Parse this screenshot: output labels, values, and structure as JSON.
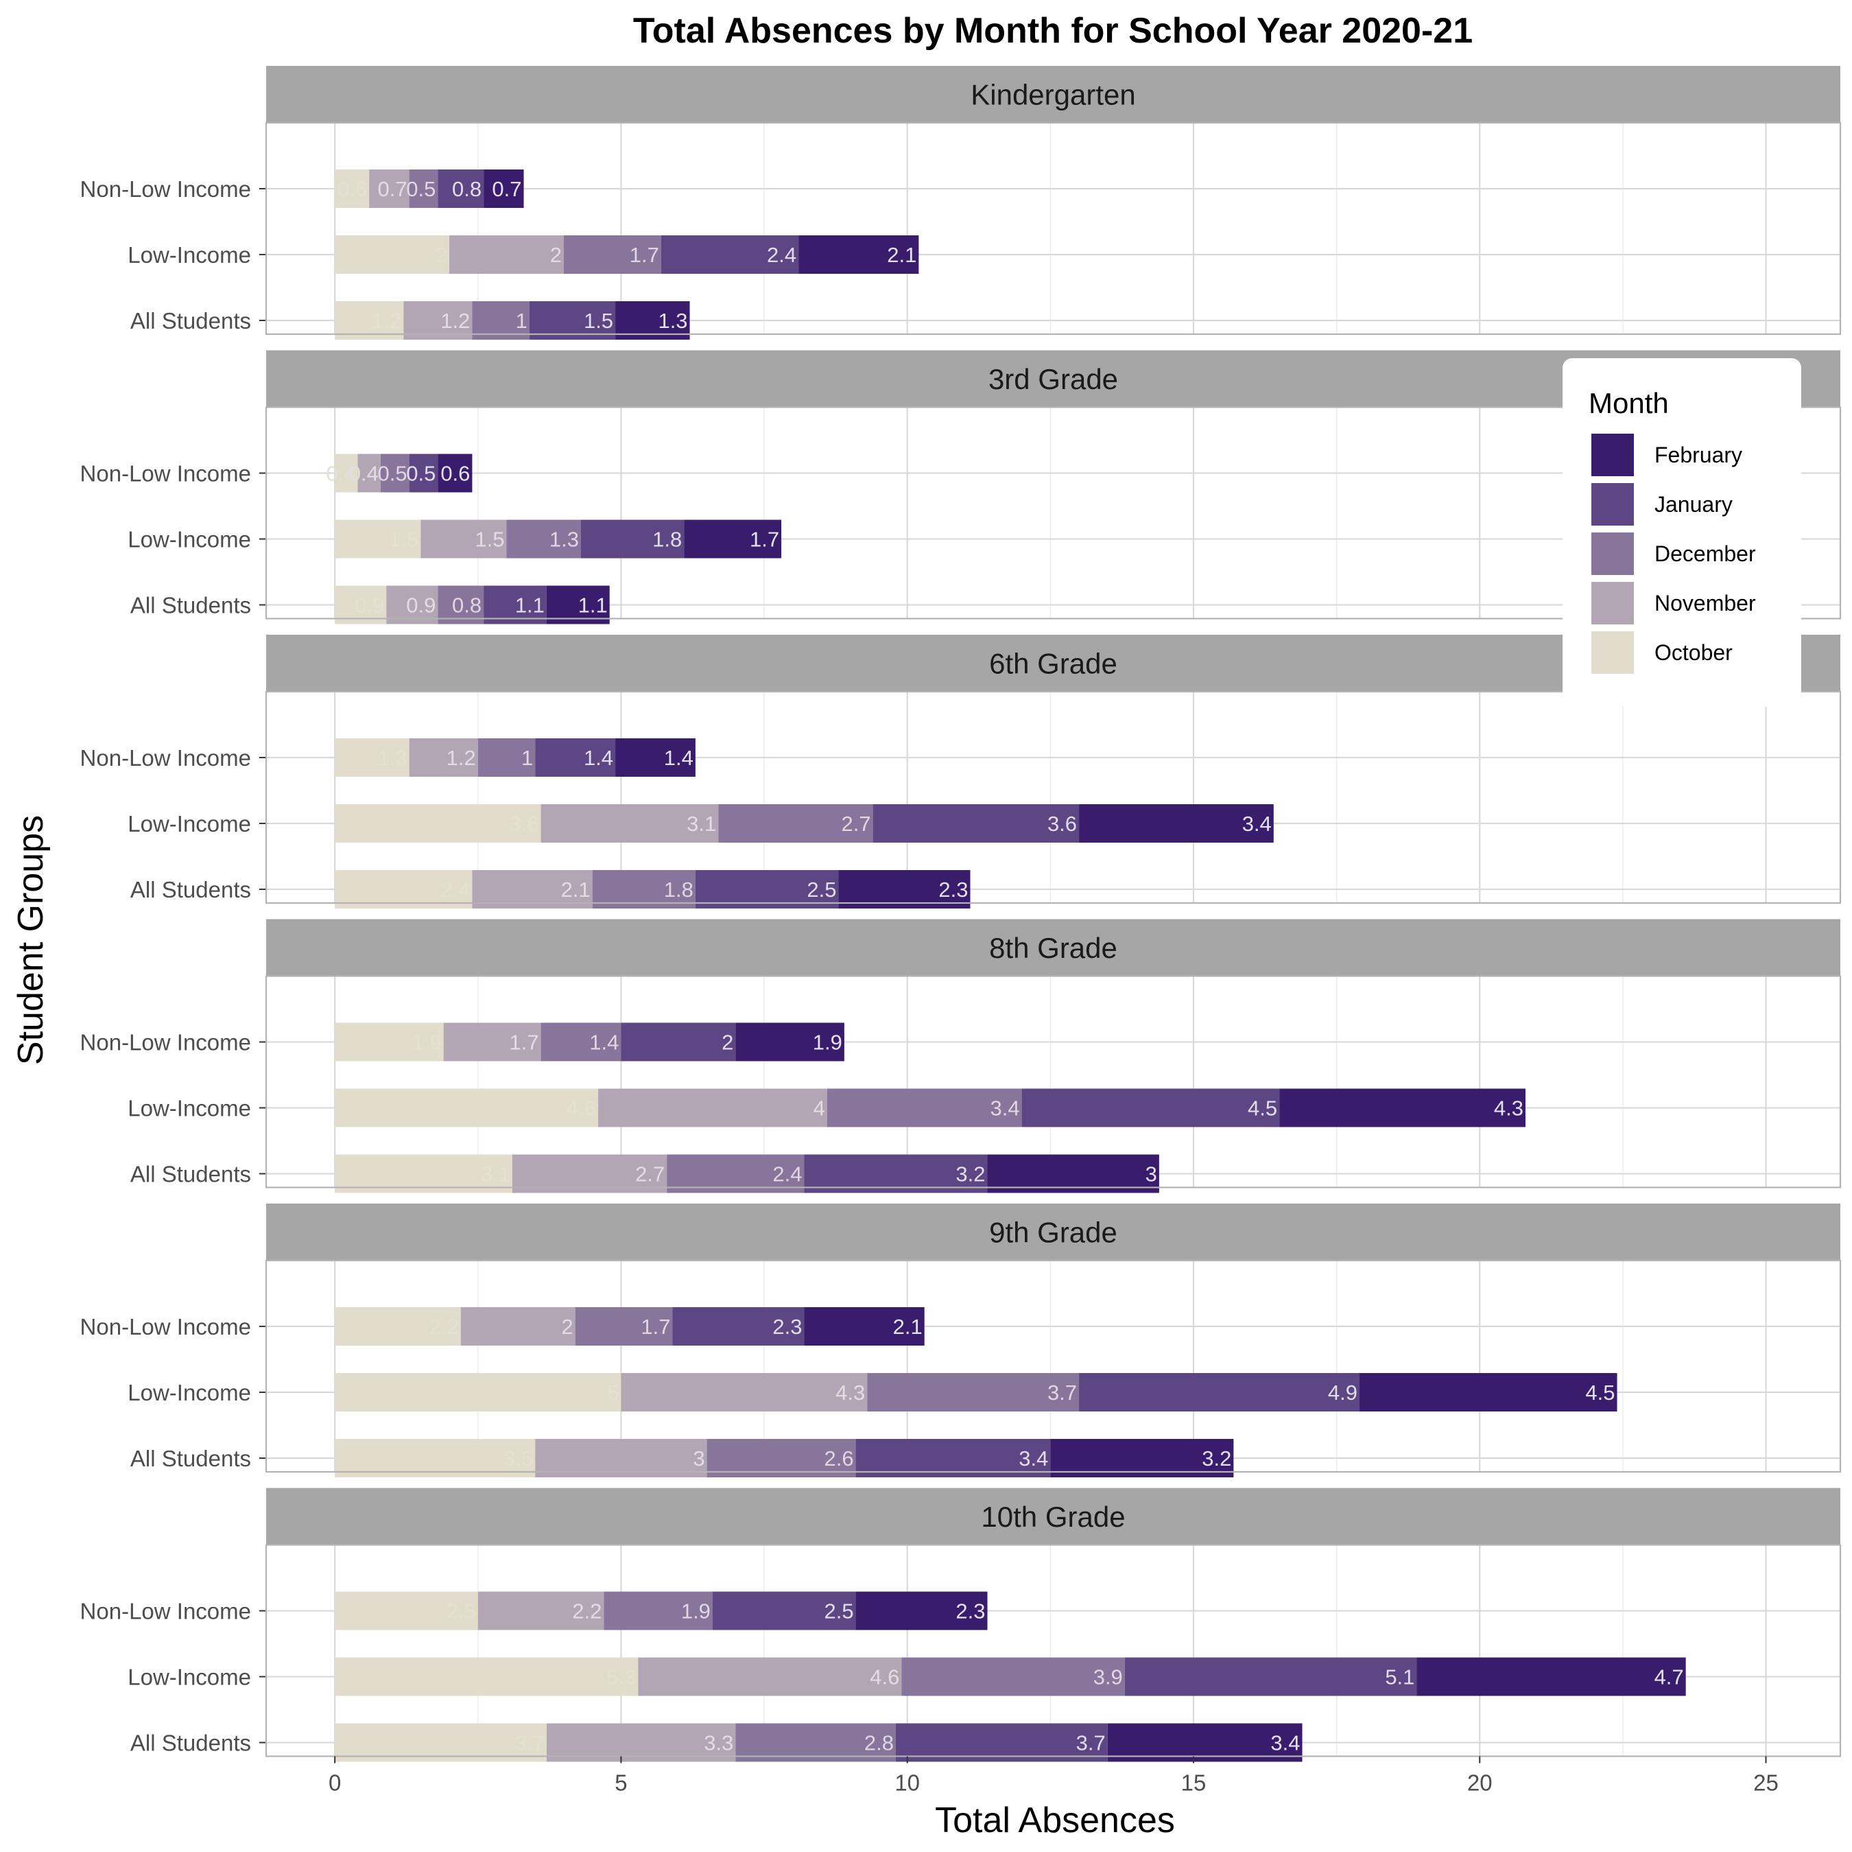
{
  "chart_data": {
    "type": "bar",
    "orientation": "horizontal",
    "stacked": true,
    "title": "Total Absences by Month for School Year 2020-21",
    "xlabel": "Total Absences",
    "ylabel": "Student Groups",
    "xlim": [
      -1.2,
      26.3
    ],
    "xticks": [
      0,
      5,
      10,
      15,
      20,
      25
    ],
    "grid": true,
    "legend_title": "Month",
    "legend_position": "top-right",
    "legend_entries": [
      "February",
      "January",
      "December",
      "November",
      "October"
    ],
    "colors": {
      "October": "#e1dccb",
      "November": "#b3a6b4",
      "December": "#88759b",
      "January": "#5c4683",
      "February": "#3a1c6d"
    },
    "label_colors": {
      "October": "#e4e0d3",
      "November": "#e2dde3",
      "December": "#ded7e4",
      "January": "#e2ddec",
      "February": "#e6e1f0"
    },
    "months": [
      "October",
      "November",
      "December",
      "January",
      "February"
    ],
    "groups": [
      "Non-Low Income",
      "Low-Income",
      "All Students"
    ],
    "facets": [
      {
        "name": "Kindergarten",
        "series": [
          {
            "group": "Non-Low Income",
            "values": [
              0.6,
              0.7,
              0.5,
              0.8,
              0.7
            ],
            "labels": [
              "0.6",
              "0.7",
              "0.5",
              "0.8",
              "0.7"
            ]
          },
          {
            "group": "Low-Income",
            "values": [
              2,
              2,
              1.7,
              2.4,
              2.1
            ],
            "labels": [
              "2",
              "2",
              "1.7",
              "2.4",
              "2.1"
            ]
          },
          {
            "group": "All Students",
            "values": [
              1.2,
              1.2,
              1,
              1.5,
              1.3
            ],
            "labels": [
              "1.2",
              "1.2",
              "1",
              "1.5",
              "1.3"
            ]
          }
        ]
      },
      {
        "name": "3rd Grade",
        "series": [
          {
            "group": "Non-Low Income",
            "values": [
              0.4,
              0.4,
              0.5,
              0.5,
              0.6
            ],
            "labels": [
              "0.4",
              "0.4",
              "0.5",
              "0.5",
              "0.6"
            ]
          },
          {
            "group": "Low-Income",
            "values": [
              1.5,
              1.5,
              1.3,
              1.8,
              1.7
            ],
            "labels": [
              "1.5",
              "1.5",
              "1.3",
              "1.8",
              "1.7"
            ]
          },
          {
            "group": "All Students",
            "values": [
              0.9,
              0.9,
              0.8,
              1.1,
              1.1
            ],
            "labels": [
              "0.9",
              "0.9",
              "0.8",
              "1.1",
              "1.1"
            ]
          }
        ]
      },
      {
        "name": "6th Grade",
        "series": [
          {
            "group": "Non-Low Income",
            "values": [
              1.3,
              1.2,
              1,
              1.4,
              1.4
            ],
            "labels": [
              "1.3",
              "1.2",
              "1",
              "1.4",
              "1.4"
            ]
          },
          {
            "group": "Low-Income",
            "values": [
              3.6,
              3.1,
              2.7,
              3.6,
              3.4
            ],
            "labels": [
              "3.6",
              "3.1",
              "2.7",
              "3.6",
              "3.4"
            ]
          },
          {
            "group": "All Students",
            "values": [
              2.4,
              2.1,
              1.8,
              2.5,
              2.3
            ],
            "labels": [
              "2.4",
              "2.1",
              "1.8",
              "2.5",
              "2.3"
            ]
          }
        ]
      },
      {
        "name": "8th Grade",
        "series": [
          {
            "group": "Non-Low Income",
            "values": [
              1.9,
              1.7,
              1.4,
              2,
              1.9
            ],
            "labels": [
              "1.9",
              "1.7",
              "1.4",
              "2",
              "1.9"
            ]
          },
          {
            "group": "Low-Income",
            "values": [
              4.6,
              4,
              3.4,
              4.5,
              4.3
            ],
            "labels": [
              "4.6",
              "4",
              "3.4",
              "4.5",
              "4.3"
            ]
          },
          {
            "group": "All Students",
            "values": [
              3.1,
              2.7,
              2.4,
              3.2,
              3
            ],
            "labels": [
              "3.1",
              "2.7",
              "2.4",
              "3.2",
              "3"
            ]
          }
        ]
      },
      {
        "name": "9th Grade",
        "series": [
          {
            "group": "Non-Low Income",
            "values": [
              2.2,
              2,
              1.7,
              2.3,
              2.1
            ],
            "labels": [
              "2.2",
              "2",
              "1.7",
              "2.3",
              "2.1"
            ]
          },
          {
            "group": "Low-Income",
            "values": [
              5,
              4.3,
              3.7,
              4.9,
              4.5
            ],
            "labels": [
              "5",
              "4.3",
              "3.7",
              "4.9",
              "4.5"
            ]
          },
          {
            "group": "All Students",
            "values": [
              3.5,
              3,
              2.6,
              3.4,
              3.2
            ],
            "labels": [
              "3.5",
              "3",
              "2.6",
              "3.4",
              "3.2"
            ]
          }
        ]
      },
      {
        "name": "10th Grade",
        "series": [
          {
            "group": "Non-Low Income",
            "values": [
              2.5,
              2.2,
              1.9,
              2.5,
              2.3
            ],
            "labels": [
              "2.5",
              "2.2",
              "1.9",
              "2.5",
              "2.3"
            ]
          },
          {
            "group": "Low-Income",
            "values": [
              5.3,
              4.6,
              3.9,
              5.1,
              4.7
            ],
            "labels": [
              "5.3",
              "4.6",
              "3.9",
              "5.1",
              "4.7"
            ]
          },
          {
            "group": "All Students",
            "values": [
              3.7,
              3.3,
              2.8,
              3.7,
              3.4
            ],
            "labels": [
              "3.7",
              "3.3",
              "2.8",
              "3.7",
              "3.4"
            ]
          }
        ]
      }
    ]
  }
}
